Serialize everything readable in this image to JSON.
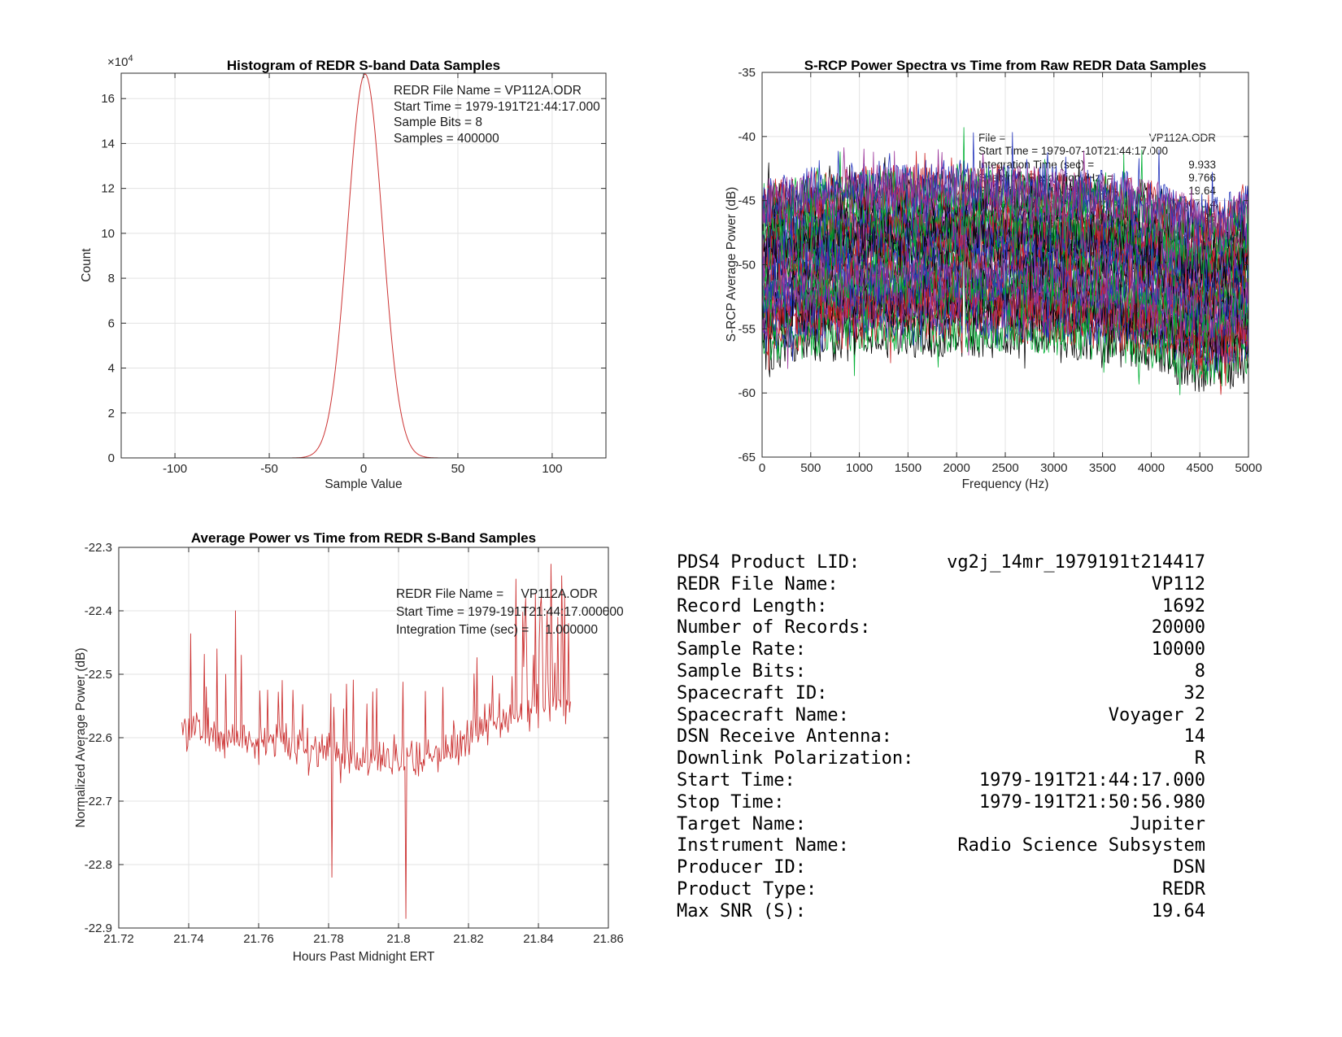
{
  "palette": {
    "line_red": "#cc3333",
    "spectra_colors": [
      "#000000",
      "#cc2222",
      "#00b033",
      "#2233bb",
      "#993399"
    ],
    "grid": "#e3e3e3",
    "axis": "#2b2b2b",
    "text": "#262626"
  },
  "chart_data": [
    {
      "type": "line",
      "title": "Histogram of REDR S-band Data Samples",
      "xlabel": "Sample Value",
      "ylabel": "Count",
      "y_multiplier": {
        "base": "×10",
        "exp": "4"
      },
      "xlim": [
        -128.5,
        128.5
      ],
      "ylim": [
        0,
        171300
      ],
      "grid": true,
      "xticks": {
        "values": [
          -100,
          -50,
          0,
          50,
          100
        ],
        "labels": [
          "-100",
          "-50",
          "0",
          "50",
          "100"
        ]
      },
      "yticks": {
        "values": [
          0,
          20000,
          40000,
          60000,
          80000,
          100000,
          120000,
          140000,
          160000
        ],
        "labels": [
          "0",
          "2",
          "4",
          "6",
          "8",
          "10",
          "12",
          "14",
          "16"
        ]
      },
      "gaussian": {
        "amplitude": 171000,
        "center": 0.8,
        "sigma": 9.2
      },
      "annotation_lines": [
        "REDR File Name = VP112A.ODR",
        "Start Time = 1979-191T21:44:17.000",
        "Sample Bits = 8",
        "Samples = 400000"
      ]
    },
    {
      "type": "line",
      "title": "S-RCP Power Spectra vs Time from Raw REDR Data Samples",
      "xlabel": "Frequency (Hz)",
      "ylabel": "S-RCP Average Power (dB)",
      "xlim": [
        0,
        5000
      ],
      "ylim": [
        -65,
        -35
      ],
      "grid": true,
      "xticks": {
        "values": [
          0,
          500,
          1000,
          1500,
          2000,
          2500,
          3000,
          3500,
          4000,
          4500,
          5000
        ],
        "labels": [
          "0",
          "500",
          "1000",
          "1500",
          "2000",
          "2500",
          "3000",
          "3500",
          "4000",
          "4500",
          "5000"
        ]
      },
      "yticks": {
        "values": [
          -65,
          -60,
          -55,
          -50,
          -45,
          -40,
          -35
        ],
        "labels": [
          "-65",
          "-60",
          "-55",
          "-50",
          "-45",
          "-40",
          "-35"
        ]
      },
      "n_spectra": 40,
      "n_bins": 512,
      "band_center_dB": [
        [
          0,
          -50.6
        ],
        [
          250,
          -50.1
        ],
        [
          700,
          -49.7
        ],
        [
          1200,
          -49.4
        ],
        [
          2000,
          -49.3
        ],
        [
          2600,
          -49.4
        ],
        [
          3200,
          -49.8
        ],
        [
          3800,
          -50.2
        ],
        [
          4200,
          -51.0
        ],
        [
          4500,
          -52.3
        ],
        [
          4750,
          -52.0
        ],
        [
          5000,
          -51.2
        ]
      ],
      "band_halfwidth_dB": 5.6,
      "point_noise_dB": 1.9,
      "carrier": {
        "freq_hz": 2070.4,
        "peak_dB": -39.3,
        "spike_range_dB": [
          -47,
          -44
        ]
      },
      "annotation_rows": [
        {
          "label": "File =",
          "value": "VP112A.ODR",
          "indent": 0
        },
        {
          "label": "Start Time = 1979-07-10T21:44:17.000",
          "value": "",
          "indent": 0
        },
        {
          "label": "Integration Time (sec) =",
          "value": "9.933",
          "indent": 0
        },
        {
          "label": "Spectrum Resolution (Hz) =",
          "value": "9.766",
          "indent": 0
        },
        {
          "label": "Peak Carrier-to-Noise (dB) =",
          "value": "19.64",
          "indent": 0
        },
        {
          "label": "Frequency of Peak (Hz) =",
          "value": "2070.4",
          "indent": 1
        },
        {
          "label": "In Average Spectrum",
          "value": "25",
          "indent": 2
        }
      ]
    },
    {
      "type": "line",
      "title": "Average Power vs Time from REDR S-Band Samples",
      "xlabel": "Hours Past Midnight ERT",
      "ylabel": "Normalized Average Power (dB)",
      "xlim": [
        21.72,
        21.86
      ],
      "ylim": [
        -22.9,
        -22.3
      ],
      "grid": true,
      "xticks": {
        "values": [
          21.72,
          21.74,
          21.76,
          21.78,
          21.8,
          21.82,
          21.84,
          21.86
        ],
        "labels": [
          "21.72",
          "21.74",
          "21.76",
          "21.78",
          "21.8",
          "21.82",
          "21.84",
          "21.86"
        ]
      },
      "yticks": {
        "values": [
          -22.9,
          -22.8,
          -22.7,
          -22.6,
          -22.5,
          -22.4,
          -22.3
        ],
        "labels": [
          "-22.9",
          "-22.8",
          "-22.7",
          "-22.6",
          "-22.5",
          "-22.4",
          "-22.3"
        ]
      },
      "t_start": 21.73806,
      "t_end": 21.84916,
      "n_points": 400,
      "baseline": [
        [
          21.738,
          -22.585
        ],
        [
          21.75,
          -22.6
        ],
        [
          21.77,
          -22.61
        ],
        [
          21.79,
          -22.635
        ],
        [
          21.805,
          -22.64
        ],
        [
          21.815,
          -22.615
        ],
        [
          21.825,
          -22.58
        ],
        [
          21.835,
          -22.56
        ],
        [
          21.849,
          -22.54
        ]
      ],
      "noise_sigma": 0.03,
      "spike_prob": 0.08,
      "end_burst_start": 21.832,
      "fixed_points": [
        [
          21.745,
          -22.52
        ],
        [
          21.748,
          -22.46
        ],
        [
          21.7505,
          -22.5
        ],
        [
          21.7535,
          -22.4
        ],
        [
          21.755,
          -22.47
        ],
        [
          21.781,
          -22.82
        ],
        [
          21.8022,
          -22.885
        ],
        [
          21.8335,
          -22.35
        ],
        [
          21.836,
          -22.42
        ],
        [
          21.8385,
          -22.47
        ],
        [
          21.841,
          -22.43
        ],
        [
          21.8425,
          -22.4
        ],
        [
          21.844,
          -22.44
        ],
        [
          21.8455,
          -22.41
        ],
        [
          21.847,
          -22.45
        ],
        [
          21.8485,
          -22.42
        ]
      ],
      "annotation_rows": [
        {
          "label": "REDR File Name =",
          "value": "VP112A.ODR",
          "indent": 0
        },
        {
          "label": "Start Time = 1979-191T21:44:17.000000",
          "value": "",
          "indent": 0
        },
        {
          "label": "Integration Time (sec) =",
          "value": "1.000000",
          "indent": 0
        }
      ]
    }
  ],
  "info_panel": {
    "rows": [
      {
        "label": "PDS4 Product LID:",
        "value": "vg2j_14mr_1979191t214417"
      },
      {
        "label": "REDR File Name:",
        "value": "VP112"
      },
      {
        "label": "Record Length:",
        "value": "1692"
      },
      {
        "label": "Number of Records:",
        "value": "20000"
      },
      {
        "label": "Sample Rate:",
        "value": "10000"
      },
      {
        "label": "Sample Bits:",
        "value": "8"
      },
      {
        "label": "Spacecraft ID:",
        "value": "32"
      },
      {
        "label": "Spacecraft Name:",
        "value": "Voyager 2"
      },
      {
        "label": "DSN Receive Antenna:",
        "value": "14"
      },
      {
        "label": "Downlink Polarization:",
        "value": "R"
      },
      {
        "label": "Start Time:",
        "value": "1979-191T21:44:17.000"
      },
      {
        "label": "Stop Time:",
        "value": "1979-191T21:50:56.980"
      },
      {
        "label": "Target Name:",
        "value": "Jupiter"
      },
      {
        "label": "Instrument Name:",
        "value": "Radio Science Subsystem"
      },
      {
        "label": "Producer ID:",
        "value": "DSN"
      },
      {
        "label": "Product Type:",
        "value": "REDR"
      },
      {
        "label": "Max SNR (S):",
        "value": "19.64"
      }
    ]
  },
  "render_hints": {
    "spectra_seed": 101,
    "timeseries_seed": 4242,
    "green_carrier_series": 27
  }
}
